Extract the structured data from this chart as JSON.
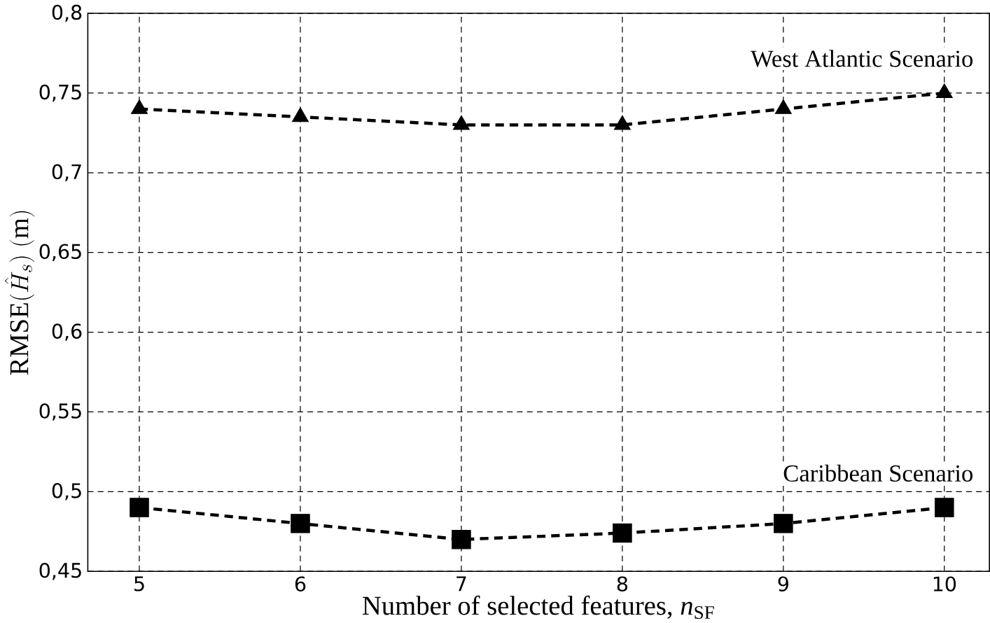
{
  "chart_data": {
    "type": "line",
    "xlabel": "Number of selected features, *n*$_{SF}$",
    "ylabel": "\\mathrm{RMSE}(\\hat{H}_s)\\ (\\mathrm{m})",
    "categories": [
      "5",
      "6",
      "7",
      "8",
      "9",
      "10"
    ],
    "series": [
      {
        "name": "West Atlantic Scenario",
        "color": "#000000",
        "marker": "triangle",
        "values": [
          0.74,
          0.735,
          0.73,
          0.73,
          0.74,
          0.75
        ]
      },
      {
        "name": "Caribbean Scenario",
        "color": "#000000",
        "marker": "square",
        "values": [
          0.49,
          0.48,
          0.47,
          0.474,
          0.48,
          0.49
        ]
      }
    ],
    "ylim": [
      0.45,
      0.8
    ],
    "yticks": [
      {
        "value": 0.45,
        "label": "0,45"
      },
      {
        "value": 0.5,
        "label": "0,5"
      },
      {
        "value": 0.55,
        "label": "0,55"
      },
      {
        "value": 0.6,
        "label": "0,6"
      },
      {
        "value": 0.65,
        "label": "0,65"
      },
      {
        "value": 0.7,
        "label": "0,7"
      },
      {
        "value": 0.75,
        "label": "0,75"
      },
      {
        "value": 0.8,
        "label": "0,8"
      }
    ],
    "grid": true,
    "legend": false,
    "line_style": "dashed"
  }
}
